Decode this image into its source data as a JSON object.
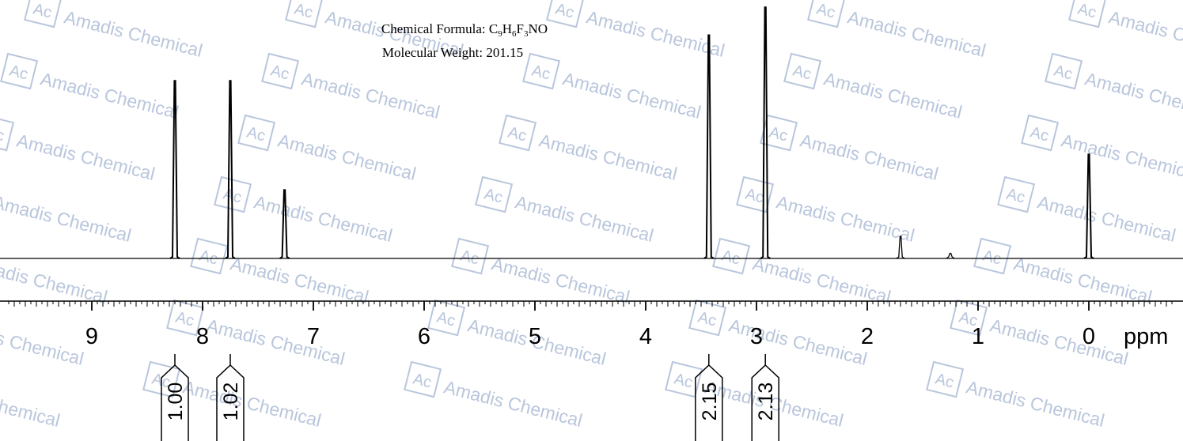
{
  "chart_data": {
    "type": "line",
    "header": {
      "formula_label": "Chemical Formula: ",
      "formula_parts": [
        {
          "t": "C",
          "sub": false
        },
        {
          "t": "9",
          "sub": true
        },
        {
          "t": "H",
          "sub": false
        },
        {
          "t": "6",
          "sub": true
        },
        {
          "t": "F",
          "sub": false
        },
        {
          "t": "3",
          "sub": true
        },
        {
          "t": "NO",
          "sub": false
        }
      ],
      "weight": "Molecular Weight: 201.15"
    },
    "xlabel": "ppm",
    "x_reversed": true,
    "xlim": [
      9.75,
      -0.75
    ],
    "ylim": [
      0,
      1.0
    ],
    "ticks": [
      "9",
      "8",
      "7",
      "6",
      "5",
      "4",
      "3",
      "2",
      "1",
      "0"
    ],
    "peaks": [
      {
        "ppm": 8.25,
        "height": 0.7
      },
      {
        "ppm": 7.75,
        "height": 0.7
      },
      {
        "ppm": 7.26,
        "height": 0.27
      },
      {
        "ppm": 3.43,
        "height": 0.88
      },
      {
        "ppm": 2.92,
        "height": 0.99
      },
      {
        "ppm": 1.7,
        "height": 0.087
      },
      {
        "ppm": 1.25,
        "height": 0.02
      },
      {
        "ppm": 0.0,
        "height": 0.41
      }
    ],
    "integrals": [
      {
        "value": "1.00",
        "ppm": 8.25
      },
      {
        "value": "1.02",
        "ppm": 7.75
      },
      {
        "value": "2.15",
        "ppm": 3.43
      },
      {
        "value": "2.13",
        "ppm": 2.92
      }
    ]
  },
  "watermark": {
    "logo": "Ac",
    "text": "Amadis Chemical",
    "color": "#b9c6dc"
  }
}
